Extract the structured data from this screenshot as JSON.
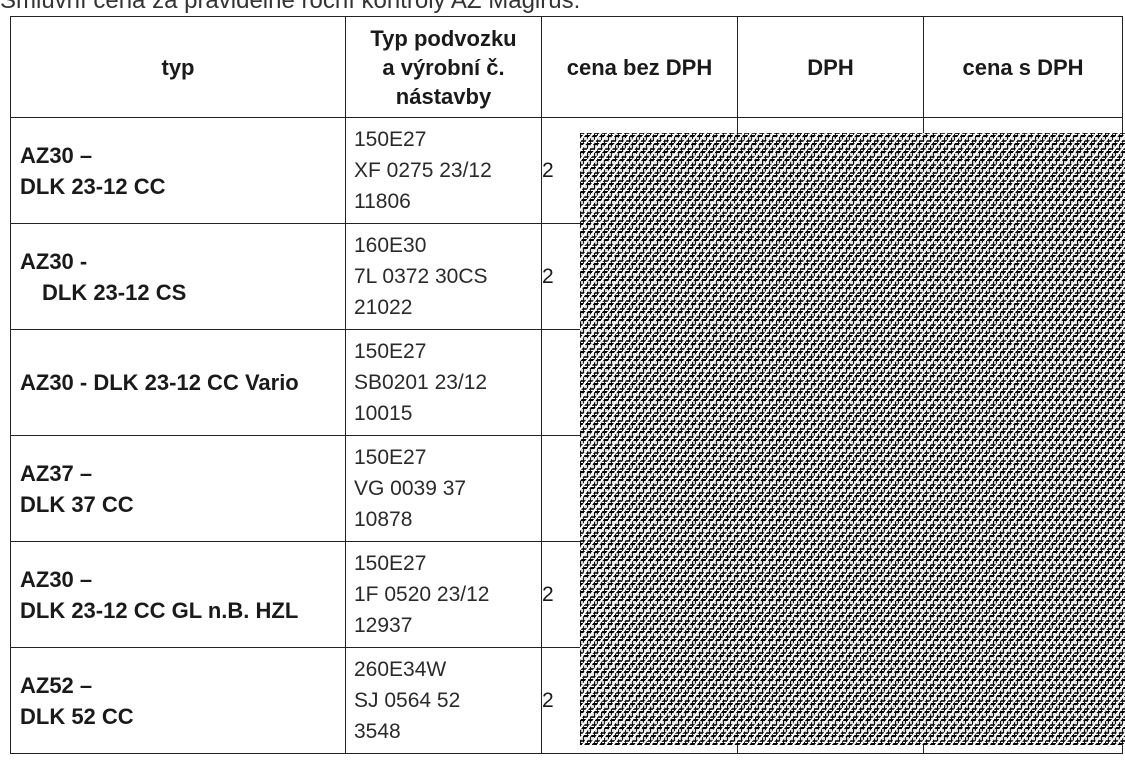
{
  "caption": "Smluvní cena za pravidelné roční kontroly AŽ Magirus:",
  "table": {
    "headers": {
      "typ": "typ",
      "chassis_line1": "Typ podvozku",
      "chassis_line2": "a výrobní č.",
      "chassis_line3": "nástavby",
      "price_no_vat": "cena bez DPH",
      "vat": "DPH",
      "price_with_vat": "cena s DPH"
    },
    "rows": [
      {
        "typ_line1": "AZ30 –",
        "typ_line2": "DLK 23-12 CC",
        "chassis": [
          "150E27",
          "XF 0275 23/12",
          "11806"
        ],
        "price_no_vat": "2",
        "vat": "",
        "price_with_vat": ""
      },
      {
        "typ_line1": "AZ30 -",
        "typ_line2": "DLK 23-12 CS",
        "chassis": [
          "160E30",
          "7L 0372 30CS",
          "21022"
        ],
        "price_no_vat": "2",
        "vat": "",
        "price_with_vat": ""
      },
      {
        "typ_line1": "AZ30 - DLK 23-12 CC Vario",
        "typ_line2": "",
        "chassis": [
          "150E27",
          "SB0201 23/12",
          "10015"
        ],
        "price_no_vat": "",
        "vat": "",
        "price_with_vat": ""
      },
      {
        "typ_line1": "AZ37 –",
        "typ_line2": "DLK 37 CC",
        "chassis": [
          "150E27",
          "VG 0039 37",
          "10878"
        ],
        "price_no_vat": "",
        "vat": "",
        "price_with_vat": ""
      },
      {
        "typ_line1": "AZ30 –",
        "typ_line2": "DLK 23-12 CC GL n.B. HZL",
        "chassis": [
          "150E27",
          "1F 0520 23/12",
          "12937"
        ],
        "price_no_vat": "2",
        "vat": "",
        "price_with_vat": ""
      },
      {
        "typ_line1": "AZ52 –",
        "typ_line2": "DLK 52 CC",
        "chassis": [
          "260E34W",
          "SJ 0564 52",
          "3548"
        ],
        "price_no_vat": "2",
        "vat": "",
        "price_with_vat": ""
      }
    ]
  }
}
